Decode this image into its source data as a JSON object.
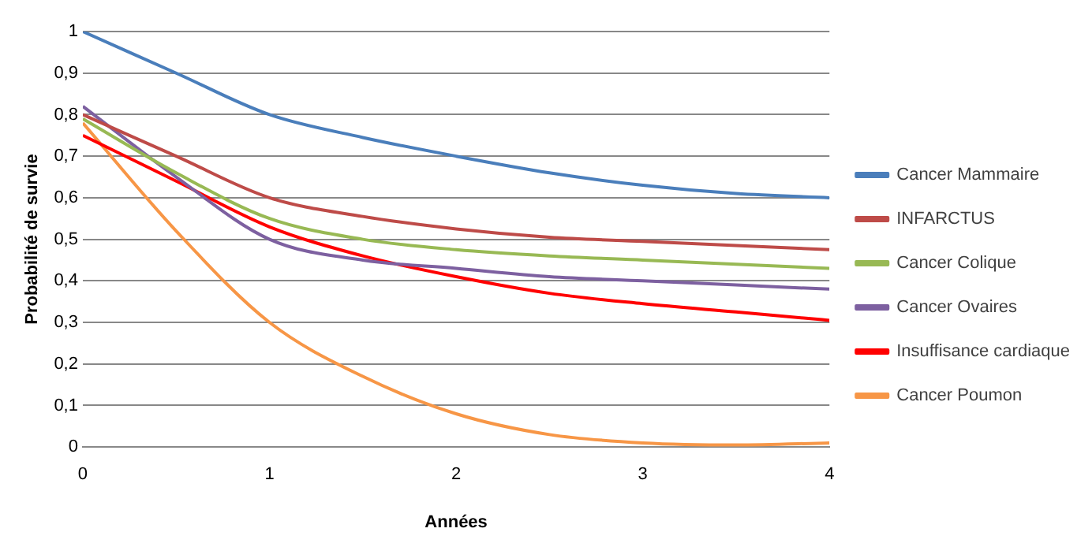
{
  "chart_data": {
    "type": "line",
    "xlabel": "Années",
    "ylabel": "Probabilité de survie",
    "x": [
      0,
      0.5,
      1,
      1.5,
      2,
      2.5,
      3,
      3.5,
      4
    ],
    "series": [
      {
        "name": "Cancer Mammaire",
        "color": "#4a7ebb",
        "values": [
          1,
          0.9,
          0.8,
          0.745,
          0.7,
          0.66,
          0.63,
          0.61,
          0.6
        ]
      },
      {
        "name": "INFARCTUS",
        "color": "#be4b48",
        "values": [
          0.8,
          0.7,
          0.6,
          0.555,
          0.525,
          0.505,
          0.495,
          0.485,
          0.475
        ]
      },
      {
        "name": "Cancer Colique",
        "color": "#98b954",
        "values": [
          0.79,
          0.66,
          0.55,
          0.5,
          0.475,
          0.46,
          0.45,
          0.44,
          0.43
        ]
      },
      {
        "name": "Cancer Ovaires",
        "color": "#7d60a0",
        "values": [
          0.82,
          0.65,
          0.5,
          0.45,
          0.43,
          0.41,
          0.4,
          0.39,
          0.38
        ]
      },
      {
        "name": "Insuffisance cardiaque",
        "color": "#ff0000",
        "values": [
          0.75,
          0.64,
          0.53,
          0.46,
          0.41,
          0.37,
          0.345,
          0.325,
          0.305
        ]
      },
      {
        "name": "Cancer Poumon",
        "color": "#f79646",
        "values": [
          0.78,
          0.52,
          0.3,
          0.17,
          0.08,
          0.03,
          0.01,
          0.005,
          0.01
        ]
      }
    ],
    "xlim": [
      0,
      4
    ],
    "xticks": [
      0,
      1,
      2,
      3,
      4
    ],
    "ylim": [
      0,
      1
    ],
    "yticks": [
      0,
      {
        "value": 0.1,
        "label": "0,1"
      },
      {
        "value": 0.2,
        "label": "0,2"
      },
      {
        "value": 0.3,
        "label": "0,3"
      },
      {
        "value": 0.4,
        "label": "0,4"
      },
      {
        "value": 0.5,
        "label": "0,5"
      },
      {
        "value": 0.6,
        "label": "0,6"
      },
      {
        "value": 0.7,
        "label": "0,7"
      },
      {
        "value": 0.8,
        "label": "0,8"
      },
      {
        "value": 0.9,
        "label": "0,9"
      },
      1
    ],
    "grid": "y",
    "legend": "right",
    "marker": "none",
    "line_style": "solid"
  }
}
